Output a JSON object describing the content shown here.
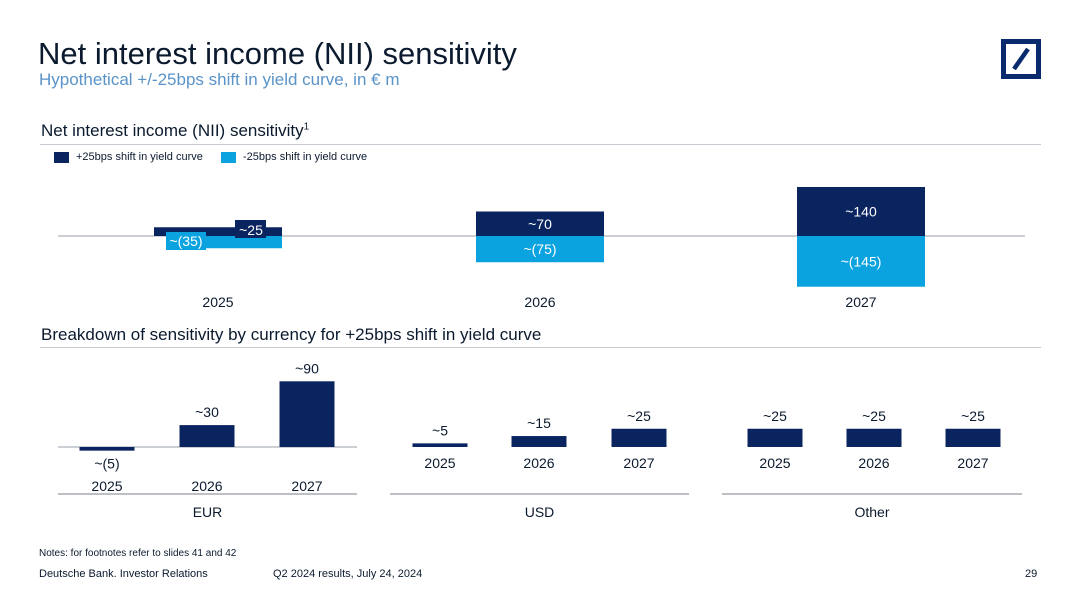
{
  "header": {
    "title": "Net interest income (NII) sensitivity",
    "subtitle": "Hypothetical +/-25bps shift in yield curve, in € m"
  },
  "colors": {
    "navy": "#0a2460",
    "cyan": "#0aa3e0",
    "subtitle": "#5a93c8",
    "rule": "#c8ccd2"
  },
  "logo": {
    "name": "deutsche-bank-logo"
  },
  "section1": {
    "title": "Net interest income (NII) sensitivity",
    "footnote_mark": "1"
  },
  "legend": {
    "plus": "+25bps shift in yield curve",
    "minus": "-25bps shift in yield curve"
  },
  "section2": {
    "title": "Breakdown of sensitivity by currency for +25bps shift in yield curve"
  },
  "chart_data": [
    {
      "type": "bar",
      "title": "Net interest income (NII) sensitivity",
      "categories": [
        "2025",
        "2026",
        "2027"
      ],
      "series": [
        {
          "name": "+25bps shift in yield curve",
          "values": [
            25,
            70,
            140
          ],
          "labels": [
            "~25",
            "~70",
            "~140"
          ]
        },
        {
          "name": "-25bps shift in yield curve",
          "values": [
            -35,
            -75,
            -145
          ],
          "labels": [
            "~(35)",
            "~(75)",
            "~(145)"
          ]
        }
      ],
      "ylabel": "€ m",
      "grid": false,
      "legend": "top-left"
    },
    {
      "type": "bar",
      "title": "EUR",
      "categories": [
        "2025",
        "2026",
        "2027"
      ],
      "values": [
        -5,
        30,
        90
      ],
      "labels": [
        "~(5)",
        "~30",
        "~90"
      ]
    },
    {
      "type": "bar",
      "title": "USD",
      "categories": [
        "2025",
        "2026",
        "2027"
      ],
      "values": [
        5,
        15,
        25
      ],
      "labels": [
        "~5",
        "~15",
        "~25"
      ]
    },
    {
      "type": "bar",
      "title": "Other",
      "categories": [
        "2025",
        "2026",
        "2027"
      ],
      "values": [
        25,
        25,
        25
      ],
      "labels": [
        "~25",
        "~25",
        "~25"
      ]
    }
  ],
  "footer": {
    "notes": "Notes: for footnotes refer to slides 41 and 42",
    "company": "Deutsche Bank. Investor Relations",
    "event": "Q2 2024 results, July 24, 2024",
    "page_number": "29"
  }
}
